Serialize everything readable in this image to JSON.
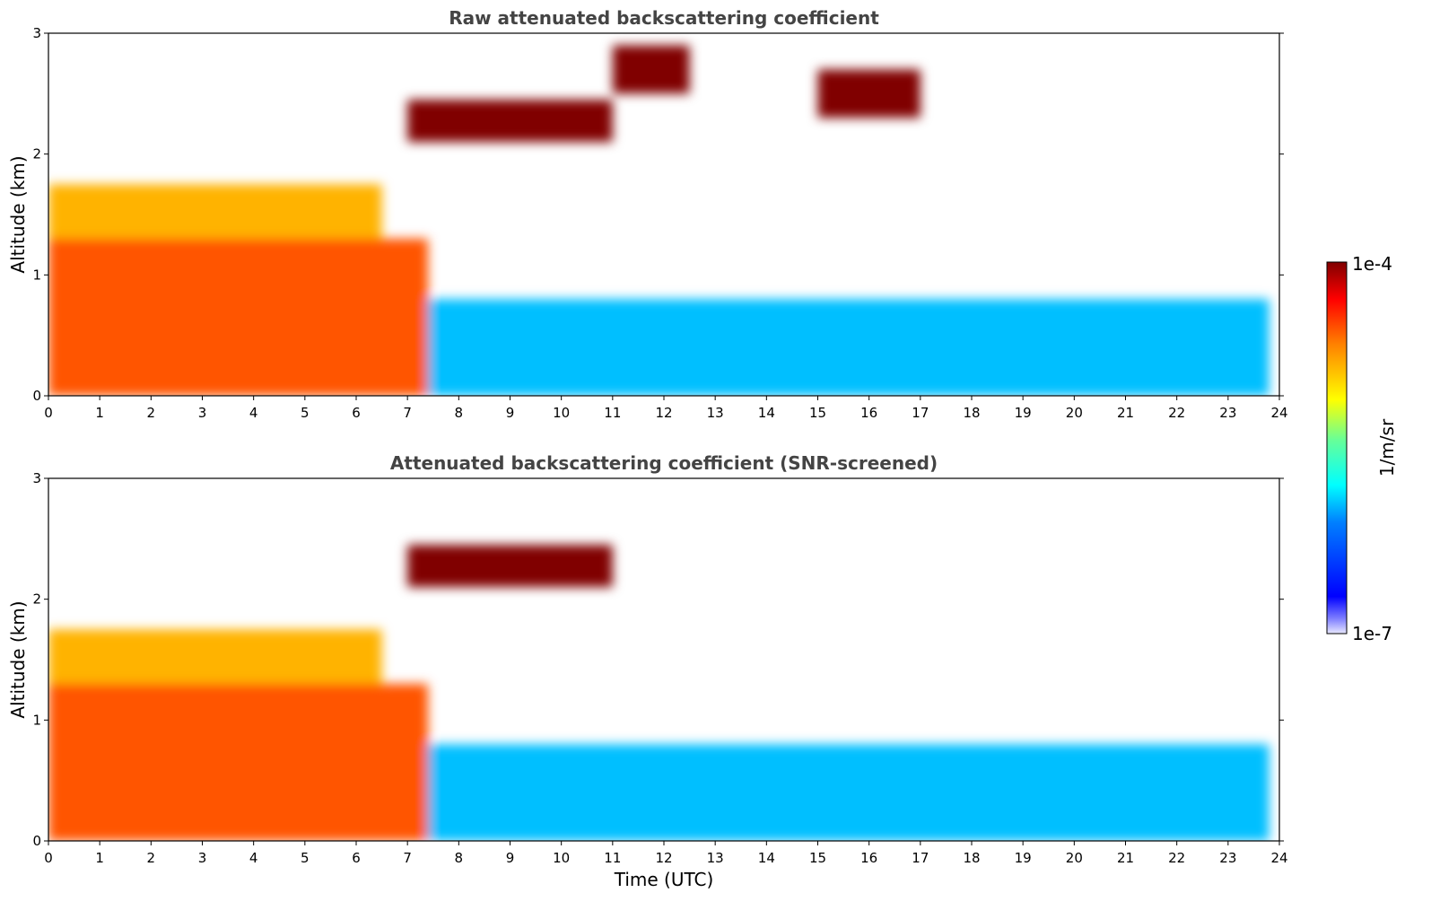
{
  "chart_data": [
    {
      "type": "heatmap",
      "title": "Raw attenuated backscattering coefficient",
      "xlabel": "",
      "ylabel": "Altitude (km)",
      "xlim": [
        0,
        24
      ],
      "ylim": [
        0,
        3
      ],
      "x_ticks": [
        "0",
        "1",
        "2",
        "3",
        "4",
        "5",
        "6",
        "7",
        "8",
        "9",
        "10",
        "11",
        "12",
        "13",
        "14",
        "15",
        "16",
        "17",
        "18",
        "19",
        "20",
        "21",
        "22",
        "23",
        "24"
      ],
      "y_ticks": [
        "0",
        "1",
        "2",
        "3"
      ],
      "data_extent_hours": [
        0,
        23.8
      ],
      "features": [
        {
          "name": "boundary layer aerosol",
          "x": [
            0,
            7.4
          ],
          "y": [
            0,
            1.3
          ],
          "level": 0.82
        },
        {
          "name": "elevated aerosol layer",
          "x": [
            0,
            6.5
          ],
          "y": [
            1.3,
            1.75
          ],
          "level": 0.72
        },
        {
          "name": "cloud layer",
          "x": [
            7,
            11
          ],
          "y": [
            2.1,
            2.45
          ],
          "level": 1.0
        },
        {
          "name": "cloud layer",
          "x": [
            11,
            12.5
          ],
          "y": [
            2.5,
            2.9
          ],
          "level": 1.0
        },
        {
          "name": "cloud layer",
          "x": [
            15,
            17
          ],
          "y": [
            2.3,
            2.7
          ],
          "level": 1.0
        },
        {
          "name": "low aerosol",
          "x": [
            7.4,
            23.8
          ],
          "y": [
            0,
            0.8
          ],
          "level": 0.35
        }
      ]
    },
    {
      "type": "heatmap",
      "title": "Attenuated backscattering coefficient (SNR-screened)",
      "xlabel": "Time (UTC)",
      "ylabel": "Altitude (km)",
      "xlim": [
        0,
        24
      ],
      "ylim": [
        0,
        3
      ],
      "x_ticks": [
        "0",
        "1",
        "2",
        "3",
        "4",
        "5",
        "6",
        "7",
        "8",
        "9",
        "10",
        "11",
        "12",
        "13",
        "14",
        "15",
        "16",
        "17",
        "18",
        "19",
        "20",
        "21",
        "22",
        "23",
        "24"
      ],
      "y_ticks": [
        "0",
        "1",
        "2",
        "3"
      ],
      "data_extent_hours": [
        0,
        23.8
      ],
      "features": [
        {
          "name": "boundary layer aerosol",
          "x": [
            0,
            7.4
          ],
          "y": [
            0,
            1.3
          ],
          "level": 0.82
        },
        {
          "name": "elevated aerosol layer",
          "x": [
            0,
            6.5
          ],
          "y": [
            1.3,
            1.75
          ],
          "level": 0.72
        },
        {
          "name": "cloud layer",
          "x": [
            7,
            11
          ],
          "y": [
            2.1,
            2.45
          ],
          "level": 1.0
        },
        {
          "name": "low aerosol",
          "x": [
            7.4,
            23.8
          ],
          "y": [
            0,
            0.8
          ],
          "level": 0.35
        }
      ]
    }
  ],
  "colorbar": {
    "label": "1/m/sr",
    "max_label": "1e-4",
    "min_label": "1e-7",
    "scale": "log",
    "colormap": "jet"
  },
  "colors": {
    "title": "#444444",
    "cloud": "#7f0000",
    "background": "#ffffff"
  }
}
